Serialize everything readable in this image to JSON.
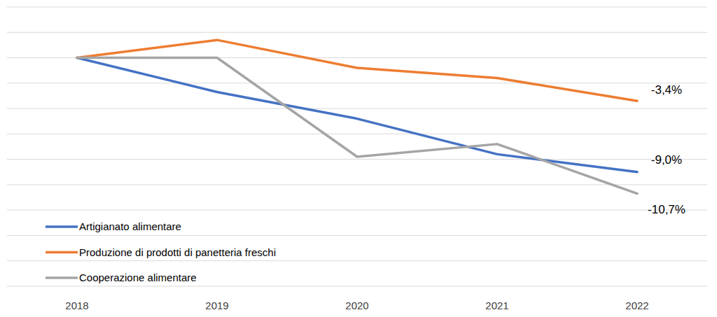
{
  "chart_data": {
    "type": "line",
    "categories": [
      "2018",
      "2019",
      "2020",
      "2021",
      "2022"
    ],
    "series": [
      {
        "name": "Artigianato alimentare",
        "color": "#4472c4",
        "values": [
          0,
          -2.7,
          -4.8,
          -7.6,
          -9.0
        ],
        "value_labels": [
          null,
          null,
          null,
          null,
          "-9,0%"
        ]
      },
      {
        "name": "Produzione di prodotti di panetteria freschi",
        "color": "#ed7d31",
        "values": [
          0,
          1.4,
          -0.8,
          -1.6,
          -3.4
        ],
        "value_labels": [
          null,
          null,
          null,
          null,
          "-3,4%"
        ]
      },
      {
        "name": "Cooperazione alimentare",
        "color": "#a5a5a5",
        "values": [
          0,
          0.0,
          -7.8,
          -6.8,
          -10.7
        ],
        "value_labels": [
          null,
          null,
          null,
          null,
          "-10,7%"
        ]
      }
    ],
    "ylim": [
      -18,
      4
    ],
    "yticks": [
      -18,
      -16,
      -14,
      -12,
      -10,
      -8,
      -6,
      -4,
      -2,
      0,
      2,
      4
    ],
    "grid": true,
    "legend": "lower left",
    "tick_labels": "x"
  }
}
